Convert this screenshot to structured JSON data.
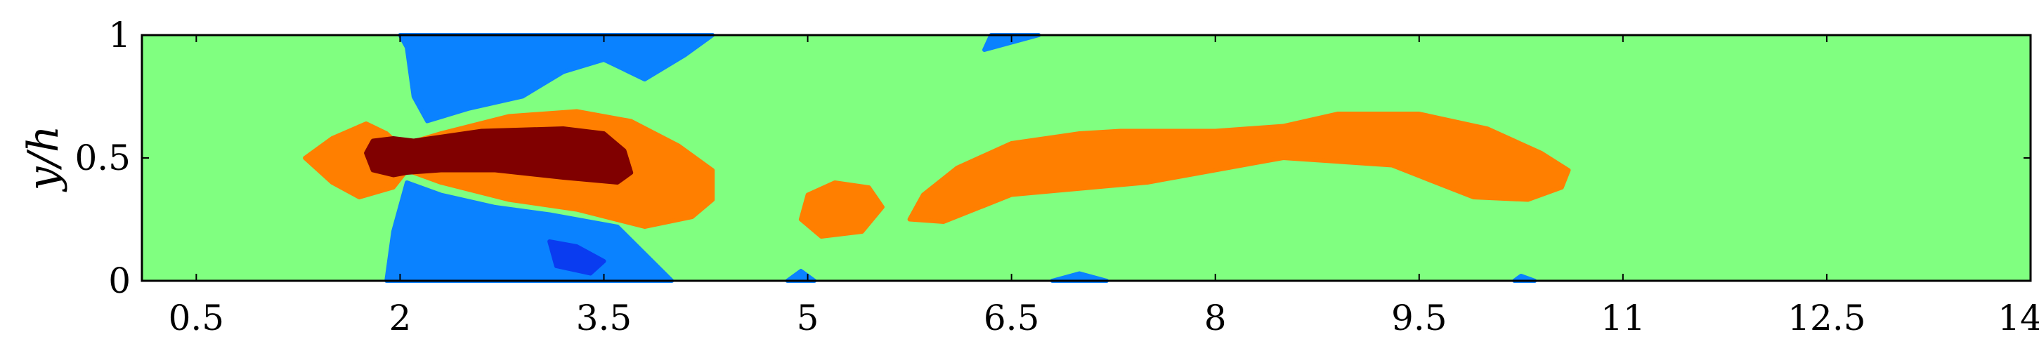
{
  "chart_data": {
    "type": "heatmap",
    "title": "",
    "xlabel": "",
    "ylabel": "y/h",
    "xlim": [
      0.1,
      14
    ],
    "ylim": [
      0,
      1
    ],
    "xticks": [
      "0.5",
      "2",
      "3.5",
      "5",
      "6.5",
      "8",
      "9.5",
      "11",
      "12.5",
      "14"
    ],
    "xtick_values": [
      0.5,
      2,
      3.5,
      5,
      6.5,
      8,
      9.5,
      11,
      12.5,
      14
    ],
    "yticks": [
      "0",
      "0.5",
      "1"
    ],
    "ytick_values": [
      0,
      0.5,
      1
    ],
    "grid": false,
    "colorbar": false,
    "levels": [
      {
        "name": "strong-negative",
        "color": "#0a3cf0"
      },
      {
        "name": "negative",
        "color": "#0a82ff"
      },
      {
        "name": "background",
        "color": "#80ff80"
      },
      {
        "name": "positive",
        "color": "#ff7f00"
      },
      {
        "name": "strong-positive",
        "color": "#800000"
      }
    ],
    "regions": [
      {
        "level": "positive",
        "points": [
          [
            1.3,
            0.5
          ],
          [
            1.5,
            0.58
          ],
          [
            1.75,
            0.64
          ],
          [
            1.9,
            0.6
          ],
          [
            2.0,
            0.55
          ],
          [
            2.3,
            0.6
          ],
          [
            2.8,
            0.67
          ],
          [
            3.3,
            0.69
          ],
          [
            3.7,
            0.65
          ],
          [
            4.05,
            0.55
          ],
          [
            4.3,
            0.45
          ],
          [
            4.3,
            0.33
          ],
          [
            4.15,
            0.26
          ],
          [
            3.8,
            0.22
          ],
          [
            3.3,
            0.29
          ],
          [
            2.8,
            0.33
          ],
          [
            2.3,
            0.4
          ],
          [
            2.05,
            0.45
          ],
          [
            1.95,
            0.38
          ],
          [
            1.7,
            0.34
          ],
          [
            1.5,
            0.4
          ]
        ]
      },
      {
        "level": "strong-positive",
        "points": [
          [
            1.75,
            0.52
          ],
          [
            1.8,
            0.57
          ],
          [
            1.95,
            0.58
          ],
          [
            2.1,
            0.57
          ],
          [
            2.6,
            0.61
          ],
          [
            3.2,
            0.62
          ],
          [
            3.5,
            0.6
          ],
          [
            3.65,
            0.53
          ],
          [
            3.7,
            0.44
          ],
          [
            3.6,
            0.4
          ],
          [
            3.2,
            0.42
          ],
          [
            2.7,
            0.45
          ],
          [
            2.3,
            0.45
          ],
          [
            2.05,
            0.44
          ],
          [
            1.95,
            0.43
          ],
          [
            1.8,
            0.45
          ]
        ]
      },
      {
        "level": "positive",
        "points": [
          [
            5.0,
            0.35
          ],
          [
            5.2,
            0.4
          ],
          [
            5.45,
            0.38
          ],
          [
            5.55,
            0.3
          ],
          [
            5.4,
            0.2
          ],
          [
            5.1,
            0.18
          ],
          [
            4.95,
            0.25
          ]
        ]
      },
      {
        "level": "positive",
        "points": [
          [
            5.75,
            0.25
          ],
          [
            5.85,
            0.35
          ],
          [
            6.1,
            0.46
          ],
          [
            6.5,
            0.56
          ],
          [
            7.0,
            0.6
          ],
          [
            7.3,
            0.61
          ],
          [
            8.0,
            0.61
          ],
          [
            8.5,
            0.63
          ],
          [
            8.9,
            0.68
          ],
          [
            9.5,
            0.68
          ],
          [
            10.0,
            0.62
          ],
          [
            10.4,
            0.52
          ],
          [
            10.6,
            0.45
          ],
          [
            10.55,
            0.38
          ],
          [
            10.3,
            0.33
          ],
          [
            9.9,
            0.34
          ],
          [
            9.3,
            0.47
          ],
          [
            8.5,
            0.5
          ],
          [
            7.5,
            0.4
          ],
          [
            6.5,
            0.35
          ],
          [
            6.0,
            0.24
          ]
        ]
      },
      {
        "level": "negative",
        "points": [
          [
            2.0,
            1.0
          ],
          [
            2.05,
            0.95
          ],
          [
            2.1,
            0.75
          ],
          [
            2.2,
            0.65
          ],
          [
            2.5,
            0.7
          ],
          [
            2.9,
            0.75
          ],
          [
            3.2,
            0.85
          ],
          [
            3.5,
            0.9
          ],
          [
            3.8,
            0.82
          ],
          [
            4.1,
            0.92
          ],
          [
            4.3,
            1.0
          ]
        ]
      },
      {
        "level": "negative",
        "points": [
          [
            2.05,
            0.4
          ],
          [
            2.3,
            0.35
          ],
          [
            2.7,
            0.3
          ],
          [
            3.1,
            0.27
          ],
          [
            3.6,
            0.22
          ],
          [
            4.0,
            0.0
          ],
          [
            1.9,
            0.0
          ],
          [
            1.95,
            0.2
          ]
        ]
      },
      {
        "level": "strong-negative",
        "points": [
          [
            3.1,
            0.16
          ],
          [
            3.3,
            0.14
          ],
          [
            3.5,
            0.08
          ],
          [
            3.4,
            0.03
          ],
          [
            3.15,
            0.06
          ]
        ]
      },
      {
        "level": "negative",
        "points": [
          [
            6.3,
            0.94
          ],
          [
            6.35,
            1.0
          ],
          [
            6.7,
            1.0
          ]
        ]
      },
      {
        "level": "negative",
        "points": [
          [
            6.8,
            0.0
          ],
          [
            7.0,
            0.03
          ],
          [
            7.2,
            0.0
          ]
        ]
      },
      {
        "level": "negative",
        "points": [
          [
            4.85,
            0.0
          ],
          [
            4.95,
            0.04
          ],
          [
            5.05,
            0.0
          ]
        ]
      },
      {
        "level": "negative",
        "points": [
          [
            10.2,
            0.0
          ],
          [
            10.25,
            0.02
          ],
          [
            10.35,
            0.0
          ]
        ]
      }
    ]
  }
}
